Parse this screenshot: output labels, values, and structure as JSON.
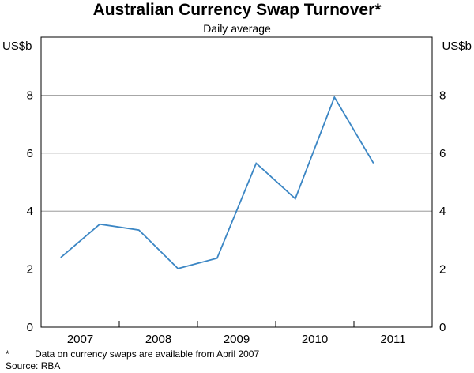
{
  "title": "Australian Currency Swap Turnover*",
  "subtitle": "Daily average",
  "footnote": {
    "marker": "*",
    "text": "Data on currency swaps are available from April 2007"
  },
  "source": "Source: RBA",
  "colors": {
    "line": "#3b86c4",
    "axis": "#000000",
    "grid": "#8a8a8a"
  },
  "chart_data": {
    "type": "line",
    "title": "Australian Currency Swap Turnover*",
    "subtitle": "Daily average",
    "y_unit_left": "US$b",
    "y_unit_right": "US$b",
    "ylim": [
      0,
      10
    ],
    "yticks": [
      0,
      2,
      4,
      6,
      8
    ],
    "ytick_labels": [
      "0",
      "2",
      "4",
      "6",
      "8"
    ],
    "xlim": [
      2007.0,
      2012.0
    ],
    "year_labels": [
      "2007",
      "2008",
      "2009",
      "2010",
      "2011"
    ],
    "grid": "horizontal",
    "series": [
      {
        "x": [
          "Apr 2007",
          "Oct 2007",
          "Apr 2008",
          "Oct 2008",
          "Apr 2009",
          "Oct 2009",
          "Apr 2010",
          "Oct 2010",
          "Apr 2011"
        ],
        "values": [
          2.4,
          3.55,
          3.35,
          2.02,
          2.38,
          5.65,
          4.43,
          7.93,
          5.65
        ]
      }
    ]
  }
}
